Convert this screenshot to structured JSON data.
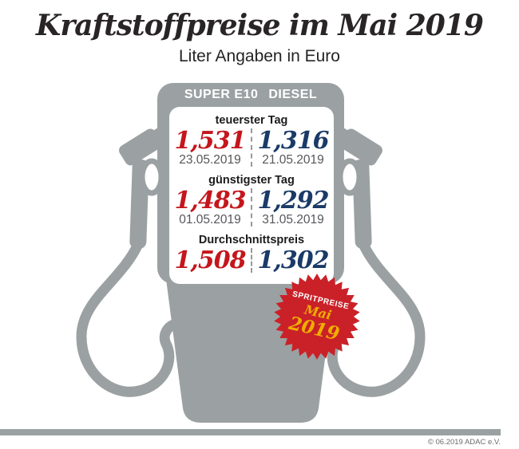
{
  "title": "Kraftstoffpreise im Mai 2019",
  "subtitle": "Liter Angaben in Euro",
  "pump": {
    "columns": [
      "SUPER E10",
      "DIESEL"
    ],
    "sections": [
      {
        "label": "teuerster Tag",
        "e10": {
          "value": "1,531",
          "date": "23.05.2019"
        },
        "diesel": {
          "value": "1,316",
          "date": "21.05.2019"
        }
      },
      {
        "label": "günstigster Tag",
        "e10": {
          "value": "1,483",
          "date": "01.05.2019"
        },
        "diesel": {
          "value": "1,292",
          "date": "31.05.2019"
        }
      },
      {
        "label": "Durchschnittspreis",
        "e10": {
          "value": "1,508"
        },
        "diesel": {
          "value": "1,302"
        }
      }
    ]
  },
  "badge": {
    "line1": "SPRITPREISE",
    "line2": "Mai",
    "line3": "2019"
  },
  "footer": {
    "credit": "© 06.2019  ADAC e.V."
  },
  "colors": {
    "pump_gray": "#9ba1a2",
    "price_red": "#c4161c",
    "price_blue": "#1a3a67",
    "badge_red": "#ca2128",
    "badge_yellow": "#f0ad00"
  },
  "chart_data": {
    "type": "table",
    "title": "Kraftstoffpreise im Mai 2019",
    "subtitle": "Liter Angaben in Euro",
    "unit": "Euro pro Liter",
    "columns": [
      "SUPER E10",
      "DIESEL"
    ],
    "rows": [
      {
        "label": "teuerster Tag",
        "super_e10": 1.531,
        "super_e10_date": "23.05.2019",
        "diesel": 1.316,
        "diesel_date": "21.05.2019"
      },
      {
        "label": "günstigster Tag",
        "super_e10": 1.483,
        "super_e10_date": "01.05.2019",
        "diesel": 1.292,
        "diesel_date": "31.05.2019"
      },
      {
        "label": "Durchschnittspreis",
        "super_e10": 1.508,
        "diesel": 1.302
      }
    ]
  }
}
